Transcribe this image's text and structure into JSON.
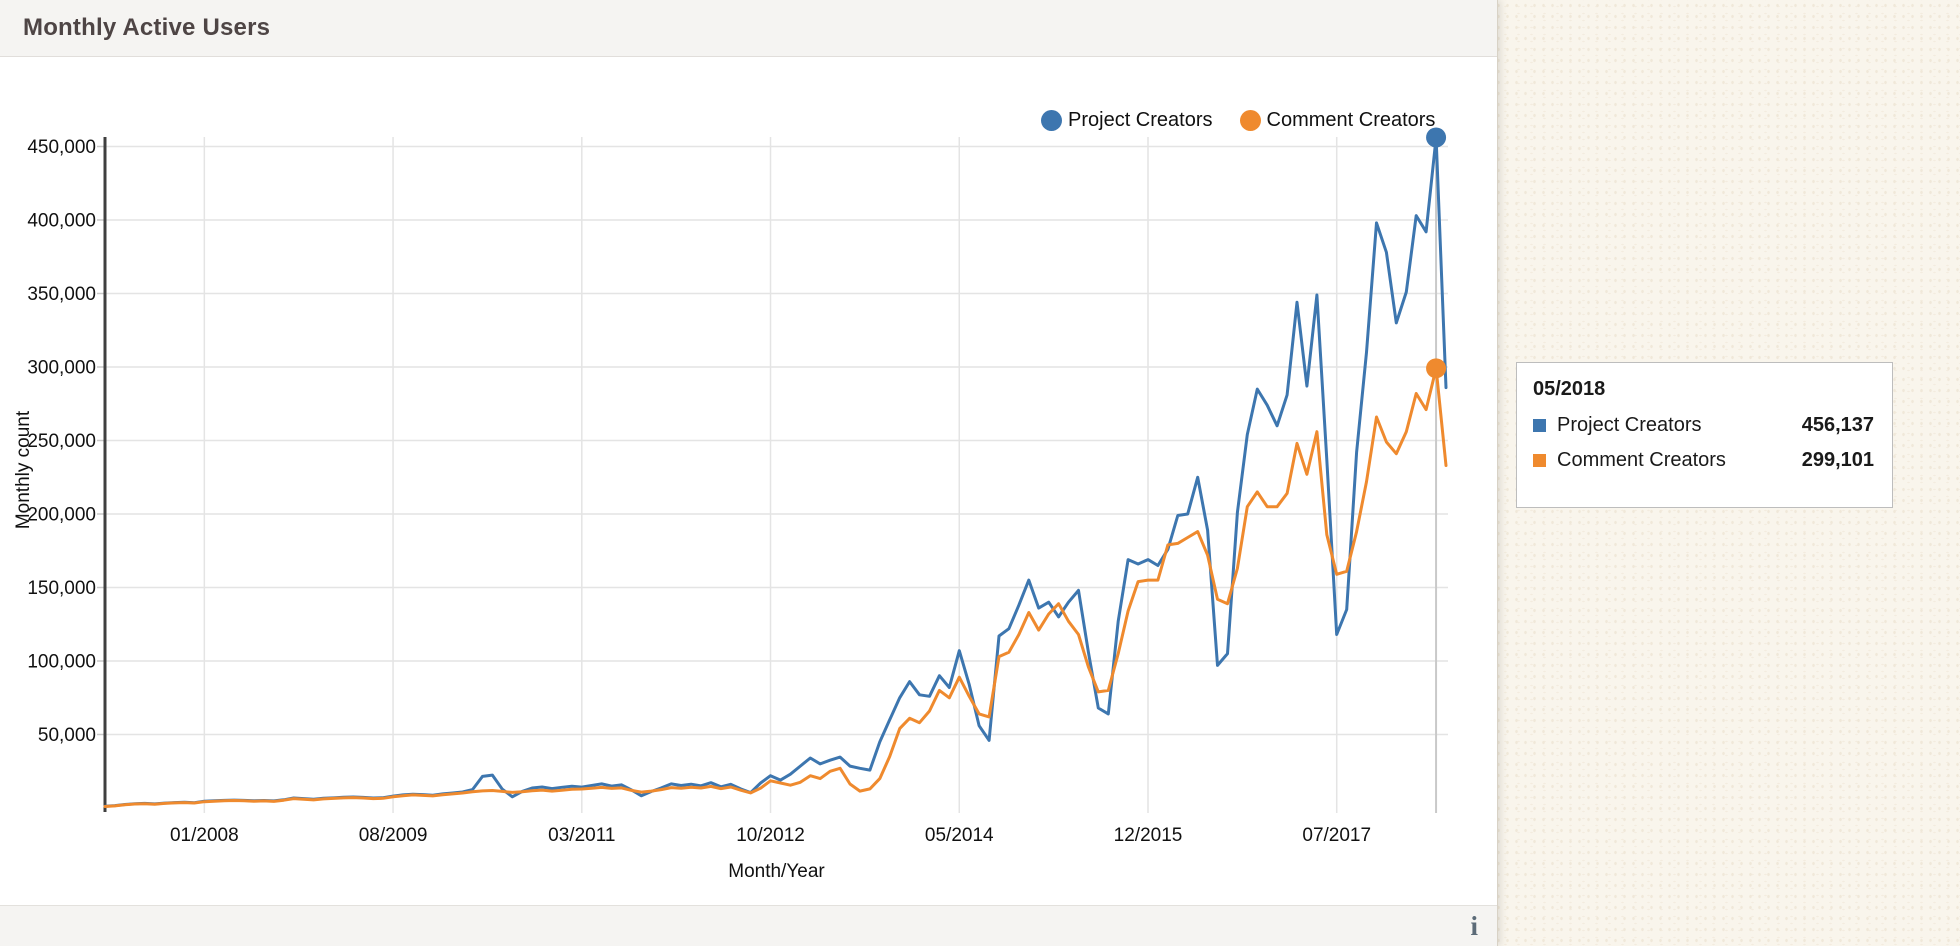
{
  "page": {
    "background_color": "#f9f5ec"
  },
  "card": {
    "title": "Monthly Active Users",
    "footer_info_label": "i"
  },
  "colors": {
    "project_creators": "#3d76af",
    "comment_creators": "#ef8a2e",
    "gridline": "#e4e4e4",
    "hover_line": "#c9c9c9",
    "axis_line": "#3f3f3f",
    "text": "#111111"
  },
  "legend": [
    {
      "label": "Project Creators",
      "color": "#3d76af"
    },
    {
      "label": "Comment Creators",
      "color": "#ef8a2e"
    }
  ],
  "tooltip": {
    "title": "05/2018",
    "rows": [
      {
        "label": "Project Creators",
        "value": "456,137",
        "color": "#3d76af"
      },
      {
        "label": "Comment Creators",
        "value": "299,101",
        "color": "#ef8a2e"
      }
    ]
  },
  "chart_data": {
    "type": "line",
    "title": "Monthly Active Users",
    "xlabel": "Month/Year",
    "ylabel": "Monthly count",
    "x_unit": "month",
    "x_start": "03/2007",
    "x_end": "06/2018",
    "x_tick_labels": [
      "01/2008",
      "08/2009",
      "03/2011",
      "10/2012",
      "05/2014",
      "12/2015",
      "07/2017"
    ],
    "x_tick_indices": [
      10,
      29,
      48,
      67,
      86,
      105,
      124
    ],
    "y_tick_values": [
      50000,
      100000,
      150000,
      200000,
      250000,
      300000,
      350000,
      400000,
      450000
    ],
    "y_tick_labels": [
      "50,000",
      "100,000",
      "150,000",
      "200,000",
      "250,000",
      "300,000",
      "350,000",
      "400,000",
      "450,000"
    ],
    "ylim": [
      0,
      475000
    ],
    "grid": true,
    "legend_position": "top-right",
    "hover_index": 134,
    "hover_label": "05/2018",
    "series": [
      {
        "name": "Project Creators",
        "color": "#3d76af",
        "values": [
          1200,
          1600,
          2400,
          2900,
          3100,
          2800,
          3300,
          3700,
          3900,
          3600,
          4600,
          4900,
          5200,
          5400,
          5200,
          4900,
          5100,
          4800,
          5600,
          6800,
          6400,
          5900,
          6600,
          6900,
          7300,
          7500,
          7200,
          6800,
          7000,
          8100,
          8900,
          9400,
          9100,
          8700,
          9600,
          10200,
          10900,
          12500,
          21500,
          22400,
          12800,
          7600,
          11300,
          13600,
          14300,
          13200,
          14100,
          14800,
          14200,
          15300,
          16400,
          14900,
          15800,
          12300,
          8300,
          11200,
          13700,
          16400,
          15300,
          16200,
          15100,
          17200,
          14400,
          16100,
          13000,
          10500,
          17000,
          22000,
          19000,
          23000,
          28500,
          34000,
          30000,
          32500,
          34600,
          28500,
          27000,
          25800,
          45000,
          60000,
          75000,
          86000,
          77000,
          76000,
          90000,
          82000,
          107000,
          84000,
          56000,
          46000,
          117000,
          122000,
          138000,
          155000,
          136000,
          140000,
          130000,
          140000,
          148000,
          106000,
          68000,
          64000,
          127000,
          169000,
          166000,
          169000,
          165000,
          176000,
          199000,
          200000,
          225000,
          189000,
          97000,
          105000,
          201000,
          254000,
          285000,
          274000,
          260000,
          281000,
          344000,
          287000,
          349000,
          237000,
          118000,
          135000,
          242000,
          310000,
          398000,
          378000,
          330000,
          351000,
          403000,
          392000,
          456137,
          286000
        ]
      },
      {
        "name": "Comment Creators",
        "color": "#ef8a2e",
        "values": [
          1000,
          1400,
          2200,
          2700,
          2900,
          2600,
          3100,
          3500,
          3700,
          3400,
          4300,
          4600,
          4900,
          5100,
          4900,
          4600,
          4800,
          4500,
          5300,
          6400,
          6000,
          5500,
          6200,
          6500,
          6900,
          7100,
          6800,
          6400,
          6600,
          7600,
          8400,
          8900,
          8600,
          8200,
          9000,
          9600,
          10200,
          11000,
          11600,
          11900,
          11300,
          10600,
          11000,
          11800,
          12200,
          11500,
          12100,
          12700,
          12900,
          13400,
          14000,
          13300,
          13700,
          12000,
          10800,
          11500,
          12500,
          13900,
          13500,
          14100,
          13600,
          14700,
          13200,
          14300,
          12100,
          10300,
          13500,
          18500,
          17000,
          15500,
          17500,
          22000,
          20000,
          25000,
          27000,
          16300,
          11500,
          13000,
          20000,
          35000,
          54000,
          61000,
          58000,
          66000,
          80000,
          75000,
          89000,
          76000,
          64000,
          62000,
          103000,
          106000,
          118000,
          133000,
          121000,
          132000,
          139000,
          127000,
          118000,
          96000,
          79000,
          80000,
          105000,
          134000,
          154000,
          155000,
          155000,
          179000,
          180000,
          184000,
          188000,
          172000,
          142000,
          139000,
          163000,
          205000,
          215000,
          205000,
          205000,
          214000,
          248000,
          227000,
          256000,
          186000,
          159000,
          161000,
          188000,
          222000,
          266000,
          249000,
          241000,
          256000,
          282000,
          271000,
          299101,
          233000
        ]
      }
    ]
  }
}
